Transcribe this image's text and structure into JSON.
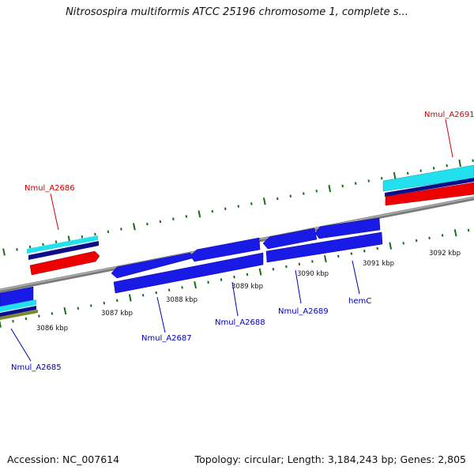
{
  "title": "Nitrosospira multiformis ATCC 25196 chromosome 1, complete s...",
  "footer": {
    "accession": "Accession: NC_007614",
    "summary": "Topology: circular; Length: 3,184,243 bp; Genes: 2,805"
  },
  "colors": {
    "forward_gene": "#ee0000",
    "reverse_gene": "#1a1ae6",
    "cds_cyan": "#22e0ee",
    "cds_dark": "#0d0d8c",
    "backbone": "#8a8a8a",
    "tick": "#1a6b1a",
    "label_red": "#cc0000",
    "label_blue": "#0000bb",
    "olive": "#7a8a2a"
  },
  "scale_labels": [
    "3086 kbp",
    "3087 kbp",
    "3088 kbp",
    "3089 kbp",
    "3090 kbp",
    "3091 kbp",
    "3092 kbp"
  ],
  "gene_labels": [
    {
      "text": "Nmul_A2691",
      "strand": "forward"
    },
    {
      "text": "Nmul_A2686",
      "strand": "forward"
    },
    {
      "text": "Nmul_A2685",
      "strand": "reverse"
    },
    {
      "text": "Nmul_A2687",
      "strand": "reverse"
    },
    {
      "text": "Nmul_A2688",
      "strand": "reverse"
    },
    {
      "text": "Nmul_A2689",
      "strand": "reverse"
    },
    {
      "text": "hemC",
      "strand": "reverse"
    }
  ]
}
